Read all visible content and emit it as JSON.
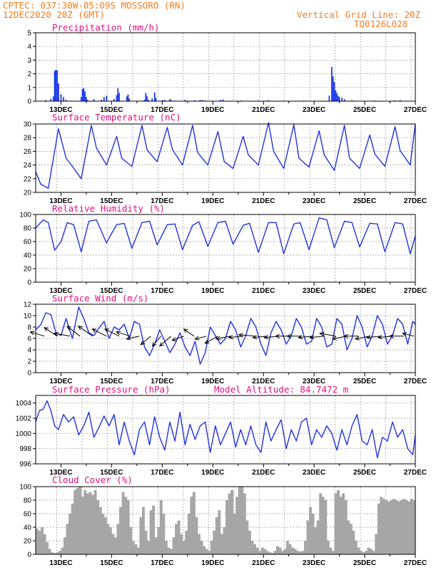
{
  "header": {
    "line1": "CPTEC:   037:30W-05:09S   MOSSORO (RN)",
    "line2": "12DEC2020 20Z (GMT)",
    "vgrid": "Vertical Grid Line: 20Z",
    "code": "TQ0126L028"
  },
  "colors": {
    "line": "#2233dd",
    "bar": "#1f3cf0",
    "cloud": "#a6a6a6",
    "header": "#f07d20",
    "title": "#e0117f"
  },
  "x_tick_labels": [
    "13DEC",
    "15DEC",
    "17DEC",
    "19DEC",
    "21DEC",
    "23DEC",
    "25DEC",
    "27DEC"
  ],
  "chart_data": [
    {
      "id": "precip",
      "type": "bar",
      "title": "Precipitation (mm/h)",
      "ylim": [
        0,
        5
      ],
      "yticks": [
        0,
        1,
        2,
        3,
        4,
        5
      ],
      "x": [
        12.4,
        12.6,
        12.7,
        12.75,
        12.8,
        12.85,
        12.9,
        13.0,
        13.1,
        13.2,
        13.8,
        13.85,
        13.9,
        13.95,
        14.0,
        14.05,
        14.3,
        14.6,
        14.7,
        14.8,
        15.1,
        15.2,
        15.25,
        15.3,
        15.6,
        15.65,
        15.7,
        16.3,
        16.35,
        16.4,
        16.45,
        16.6,
        16.7,
        16.75,
        17.0,
        17.1,
        17.3,
        17.35,
        17.9,
        18.3,
        18.5,
        18.6,
        18.7,
        19.3,
        19.4,
        20.1,
        20.8,
        21.2,
        21.8,
        22.6,
        23.6,
        23.7,
        23.75,
        23.8,
        23.85,
        23.9,
        23.95,
        24.0,
        24.1,
        24.2,
        24.5,
        25.4,
        26.2,
        26.4
      ],
      "values": [
        0.08,
        0.18,
        0.35,
        2.2,
        2.3,
        2.25,
        1.3,
        0.5,
        0.3,
        0.1,
        0.3,
        0.9,
        0.95,
        0.7,
        0.3,
        0.1,
        0.15,
        0.1,
        0.3,
        0.4,
        0.15,
        0.45,
        0.95,
        0.6,
        0.35,
        0.5,
        0.2,
        0.1,
        0.6,
        0.35,
        0.1,
        0.2,
        0.65,
        0.25,
        0.08,
        0.1,
        0.15,
        0.08,
        0.1,
        0.08,
        0.1,
        0.08,
        0.05,
        0.1,
        0.12,
        0.05,
        0.05,
        0.08,
        0.05,
        0.05,
        0.4,
        2.5,
        1.8,
        1.4,
        0.8,
        0.6,
        0.4,
        0.3,
        0.25,
        0.15,
        0.08,
        0.05,
        0.05,
        0.08
      ]
    },
    {
      "id": "temp",
      "type": "line",
      "title": "Surface Temperature (nC)",
      "ylim": [
        20,
        30
      ],
      "yticks": [
        20,
        22,
        24,
        26,
        28,
        30
      ],
      "x": [
        12.0,
        12.2,
        12.5,
        12.9,
        13.2,
        13.45,
        13.8,
        14.2,
        14.4,
        14.8,
        15.2,
        15.4,
        15.8,
        16.2,
        16.4,
        16.8,
        17.2,
        17.4,
        17.8,
        18.2,
        18.4,
        18.8,
        19.2,
        19.45,
        19.8,
        20.2,
        20.4,
        20.8,
        21.2,
        21.4,
        21.8,
        22.2,
        22.4,
        22.8,
        23.2,
        23.4,
        23.8,
        24.2,
        24.4,
        24.8,
        25.2,
        25.4,
        25.8,
        26.2,
        26.4,
        26.8,
        27.0
      ],
      "values": [
        23.0,
        21.2,
        20.6,
        29.3,
        25.0,
        23.8,
        22.0,
        29.8,
        26.5,
        24.0,
        28.2,
        25.0,
        23.8,
        29.8,
        26.2,
        24.5,
        29.5,
        26.3,
        24.0,
        29.8,
        25.8,
        24.0,
        28.9,
        24.5,
        23.5,
        28.2,
        25.5,
        24.0,
        30.2,
        26.0,
        23.5,
        29.9,
        25.0,
        23.7,
        29.0,
        25.5,
        23.2,
        29.8,
        25.0,
        23.5,
        28.4,
        25.6,
        23.8,
        29.6,
        26.1,
        24.0,
        30.0
      ]
    },
    {
      "id": "rh",
      "type": "line",
      "title": "Relative Humidity (%)",
      "ylim": [
        0,
        100
      ],
      "yticks": [
        0,
        20,
        40,
        60,
        80,
        100
      ],
      "x": [
        12.0,
        12.3,
        12.5,
        12.75,
        13.0,
        13.25,
        13.5,
        13.8,
        14.1,
        14.4,
        14.8,
        15.0,
        15.2,
        15.5,
        15.8,
        16.2,
        16.5,
        16.8,
        17.2,
        17.5,
        17.8,
        18.2,
        18.45,
        18.8,
        19.2,
        19.5,
        19.8,
        20.2,
        20.45,
        20.8,
        21.2,
        21.5,
        21.8,
        22.2,
        22.45,
        22.8,
        23.2,
        23.5,
        23.8,
        24.2,
        24.5,
        24.8,
        25.2,
        25.5,
        25.8,
        26.2,
        26.5,
        26.8,
        27.0
      ],
      "values": [
        80.0,
        92.0,
        88.0,
        47.0,
        60.0,
        88.0,
        85.0,
        45.0,
        90.0,
        92.0,
        58.0,
        72.0,
        85.0,
        87.0,
        50.0,
        88.0,
        90.0,
        55.0,
        85.0,
        86.0,
        48.0,
        84.0,
        89.0,
        53.0,
        88.0,
        90.0,
        56.0,
        84.0,
        87.0,
        44.0,
        88.0,
        88.0,
        42.0,
        86.0,
        88.0,
        48.0,
        95.0,
        92.0,
        51.0,
        90.0,
        88.0,
        52.0,
        87.0,
        86.0,
        45.0,
        88.0,
        86.0,
        42.0,
        68.0
      ]
    },
    {
      "id": "wind",
      "type": "line",
      "title": "Surface Wind (m/s)",
      "ylim": [
        0,
        12
      ],
      "yticks": [
        0,
        2,
        4,
        6,
        8,
        10,
        12
      ],
      "x": [
        12.0,
        12.2,
        12.4,
        12.6,
        12.8,
        13.0,
        13.2,
        13.45,
        13.7,
        13.9,
        14.1,
        14.3,
        14.45,
        14.7,
        14.9,
        15.1,
        15.3,
        15.5,
        15.7,
        15.9,
        16.1,
        16.3,
        16.5,
        16.7,
        16.9,
        17.1,
        17.3,
        17.5,
        17.7,
        17.9,
        18.1,
        18.3,
        18.5,
        18.7,
        18.9,
        19.1,
        19.3,
        19.5,
        19.7,
        19.9,
        20.1,
        20.3,
        20.5,
        20.7,
        20.9,
        21.1,
        21.3,
        21.5,
        21.7,
        21.9,
        22.1,
        22.3,
        22.5,
        22.7,
        22.9,
        23.1,
        23.3,
        23.5,
        23.7,
        23.9,
        24.1,
        24.3,
        24.5,
        24.7,
        24.9,
        25.1,
        25.3,
        25.5,
        25.7,
        25.9,
        26.1,
        26.3,
        26.5,
        26.7,
        26.9,
        27.0
      ],
      "values": [
        7.5,
        8.4,
        10.5,
        10.2,
        7.0,
        6.5,
        9.5,
        6.0,
        11.5,
        9.5,
        7.0,
        6.5,
        7.5,
        9.0,
        6.0,
        8.0,
        7.5,
        8.5,
        6.0,
        9.0,
        8.5,
        4.5,
        3.0,
        5.0,
        7.5,
        5.5,
        3.5,
        5.0,
        7.0,
        4.5,
        3.0,
        5.5,
        1.5,
        3.5,
        8.0,
        6.5,
        5.0,
        6.0,
        9.0,
        7.5,
        4.5,
        6.5,
        9.5,
        8.0,
        5.0,
        3.0,
        7.0,
        9.0,
        7.5,
        5.0,
        6.5,
        9.5,
        8.0,
        5.0,
        5.5,
        9.5,
        8.0,
        4.5,
        5.0,
        9.5,
        8.5,
        4.0,
        6.0,
        10.0,
        8.0,
        4.5,
        6.5,
        10.0,
        8.5,
        5.0,
        6.5,
        9.5,
        8.5,
        5.0,
        9.0,
        8.5
      ],
      "vectors": [
        {
          "x": 12.35,
          "dx": -0.5,
          "dy": -0.15
        },
        {
          "x": 12.85,
          "dx": -0.45,
          "dy": -0.3
        },
        {
          "x": 13.35,
          "dx": -0.55,
          "dy": -0.1
        },
        {
          "x": 13.75,
          "dx": -0.45,
          "dy": -0.35
        },
        {
          "x": 14.25,
          "dx": -0.5,
          "dy": -0.35
        },
        {
          "x": 14.8,
          "dx": -0.5,
          "dy": -0.25
        },
        {
          "x": 15.3,
          "dx": -0.5,
          "dy": -0.25
        },
        {
          "x": 15.75,
          "dx": -0.5,
          "dy": -0.15
        },
        {
          "x": 16.1,
          "dx": -0.45,
          "dy": 0.1
        },
        {
          "x": 16.55,
          "dx": -0.35,
          "dy": 0.3
        },
        {
          "x": 16.95,
          "dx": -0.3,
          "dy": 0.35
        },
        {
          "x": 17.35,
          "dx": -0.4,
          "dy": 0.35
        },
        {
          "x": 17.85,
          "dx": -0.4,
          "dy": 0.15
        },
        {
          "x": 18.25,
          "dx": -0.35,
          "dy": -0.25
        },
        {
          "x": 18.75,
          "dx": -0.4,
          "dy": 0.1
        },
        {
          "x": 19.2,
          "dx": -0.45,
          "dy": 0.25
        },
        {
          "x": 19.7,
          "dx": -0.5,
          "dy": 0.1
        },
        {
          "x": 20.2,
          "dx": -0.5,
          "dy": 0.05
        },
        {
          "x": 20.65,
          "dx": -0.55,
          "dy": -0.05
        },
        {
          "x": 21.15,
          "dx": -0.5,
          "dy": 0.05
        },
        {
          "x": 21.6,
          "dx": -0.5,
          "dy": 0.05
        },
        {
          "x": 22.05,
          "dx": -0.5,
          "dy": 0.0
        },
        {
          "x": 22.5,
          "dx": -0.5,
          "dy": 0.0
        },
        {
          "x": 22.95,
          "dx": -0.5,
          "dy": 0.05
        },
        {
          "x": 23.4,
          "dx": -0.5,
          "dy": 0.05
        },
        {
          "x": 23.85,
          "dx": -0.55,
          "dy": -0.1
        },
        {
          "x": 24.3,
          "dx": -0.5,
          "dy": 0.1
        },
        {
          "x": 24.75,
          "dx": -0.5,
          "dy": 0.0
        },
        {
          "x": 25.2,
          "dx": -0.5,
          "dy": 0.1
        },
        {
          "x": 25.65,
          "dx": -0.5,
          "dy": 0.05
        },
        {
          "x": 26.1,
          "dx": -0.5,
          "dy": 0.05
        },
        {
          "x": 26.55,
          "dx": -0.5,
          "dy": 0.0
        },
        {
          "x": 26.95,
          "dx": -0.4,
          "dy": -0.1
        }
      ]
    },
    {
      "id": "pres",
      "type": "line",
      "title": "Surface Pressure (hPa)",
      "annotation": "Model Altitude: 84.7472 m",
      "ylim": [
        996,
        1005
      ],
      "yticks": [
        996,
        998,
        1000,
        1002,
        1004
      ],
      "x": [
        12.0,
        12.15,
        12.3,
        12.45,
        12.6,
        12.75,
        12.9,
        13.1,
        13.3,
        13.5,
        13.7,
        13.9,
        14.1,
        14.3,
        14.5,
        14.7,
        14.9,
        15.1,
        15.3,
        15.5,
        15.7,
        15.9,
        16.1,
        16.3,
        16.5,
        16.7,
        16.9,
        17.1,
        17.3,
        17.5,
        17.7,
        17.9,
        18.1,
        18.3,
        18.5,
        18.7,
        18.9,
        19.1,
        19.3,
        19.5,
        19.7,
        19.9,
        20.1,
        20.3,
        20.5,
        20.7,
        20.9,
        21.1,
        21.3,
        21.5,
        21.7,
        21.9,
        22.1,
        22.3,
        22.5,
        22.7,
        22.9,
        23.1,
        23.3,
        23.5,
        23.7,
        23.9,
        24.1,
        24.3,
        24.5,
        24.7,
        24.9,
        25.1,
        25.3,
        25.5,
        25.7,
        25.9,
        26.1,
        26.3,
        26.5,
        26.7,
        26.9,
        27.0
      ],
      "values": [
        1001.5,
        1003.0,
        1003.2,
        1004.3,
        1003.0,
        1001.0,
        1000.5,
        1002.5,
        1001.5,
        1002.2,
        999.8,
        1001.0,
        1002.8,
        999.5,
        1000.8,
        1002.3,
        1001.0,
        1002.5,
        998.5,
        1001.5,
        999.0,
        997.2,
        1000.5,
        1001.5,
        998.5,
        1002.2,
        999.5,
        997.8,
        1001.5,
        999.0,
        1002.8,
        998.5,
        1001.2,
        999.2,
        1001.0,
        1001.5,
        997.5,
        1001.0,
        998.5,
        1000.0,
        1001.5,
        998.2,
        1000.5,
        998.5,
        1001.0,
        998.5,
        997.5,
        1001.5,
        999.0,
        1000.5,
        1001.8,
        998.0,
        1000.5,
        999.0,
        1001.5,
        1002.0,
        998.5,
        1000.5,
        999.5,
        1001.0,
        1000.0,
        997.8,
        1000.5,
        998.5,
        1001.0,
        1002.5,
        999.0,
        998.5,
        1000.5,
        996.8,
        999.5,
        999.0,
        1001.5,
        999.5,
        1000.5,
        998.0,
        997.2,
        999.8
      ]
    },
    {
      "id": "cloud",
      "type": "bar",
      "title": "Cloud Cover (%)",
      "ylim": [
        0,
        100
      ],
      "yticks": [
        0,
        20,
        40,
        60,
        80,
        100
      ],
      "x": [
        12.0,
        12.1,
        12.2,
        12.3,
        12.4,
        12.5,
        12.6,
        12.7,
        12.8,
        12.9,
        13.0,
        13.1,
        13.2,
        13.3,
        13.4,
        13.5,
        13.6,
        13.7,
        13.8,
        13.9,
        14.0,
        14.1,
        14.2,
        14.3,
        14.4,
        14.5,
        14.6,
        14.7,
        14.8,
        14.9,
        15.0,
        15.1,
        15.2,
        15.3,
        15.4,
        15.5,
        15.6,
        15.7,
        15.8,
        15.9,
        16.0,
        16.1,
        16.2,
        16.3,
        16.4,
        16.5,
        16.6,
        16.7,
        16.8,
        16.9,
        17.0,
        17.1,
        17.2,
        17.3,
        17.4,
        17.5,
        17.6,
        17.7,
        17.8,
        17.9,
        18.0,
        18.1,
        18.2,
        18.3,
        18.4,
        18.5,
        18.6,
        18.7,
        18.8,
        18.9,
        19.0,
        19.1,
        19.2,
        19.3,
        19.4,
        19.5,
        19.6,
        19.7,
        19.8,
        19.9,
        20.0,
        20.1,
        20.2,
        20.3,
        20.4,
        20.5,
        20.6,
        20.7,
        20.8,
        20.9,
        21.0,
        21.1,
        21.2,
        21.3,
        21.4,
        21.5,
        21.6,
        21.7,
        21.8,
        21.9,
        22.0,
        22.1,
        22.2,
        22.3,
        22.4,
        22.5,
        22.6,
        22.7,
        22.8,
        22.9,
        23.0,
        23.1,
        23.2,
        23.3,
        23.4,
        23.5,
        23.6,
        23.7,
        23.8,
        23.9,
        24.0,
        24.1,
        24.2,
        24.3,
        24.4,
        24.5,
        24.6,
        24.7,
        24.8,
        24.9,
        25.0,
        25.1,
        25.2,
        25.3,
        25.4,
        25.5,
        25.6,
        25.7,
        25.8,
        25.9,
        26.0,
        26.1,
        26.2,
        26.3,
        26.4,
        26.5,
        26.6,
        26.7,
        26.8,
        26.9
      ],
      "values": [
        38,
        35,
        40,
        30,
        18,
        8,
        3,
        2,
        3,
        5,
        10,
        25,
        45,
        60,
        75,
        95,
        98,
        100,
        85,
        95,
        90,
        92,
        88,
        95,
        80,
        70,
        60,
        55,
        45,
        40,
        30,
        25,
        45,
        70,
        92,
        85,
        80,
        40,
        20,
        15,
        10,
        55,
        70,
        35,
        20,
        65,
        72,
        25,
        40,
        80,
        60,
        20,
        10,
        8,
        25,
        45,
        50,
        30,
        20,
        35,
        60,
        85,
        92,
        55,
        30,
        20,
        12,
        8,
        5,
        20,
        35,
        55,
        65,
        30,
        40,
        80,
        90,
        95,
        60,
        85,
        100,
        100,
        90,
        50,
        35,
        20,
        15,
        10,
        5,
        10,
        8,
        5,
        3,
        2,
        5,
        12,
        10,
        5,
        8,
        20,
        15,
        10,
        8,
        5,
        4,
        5,
        20,
        50,
        70,
        60,
        40,
        50,
        90,
        85,
        80,
        20,
        10,
        5,
        90,
        95,
        85,
        90,
        80,
        50,
        45,
        35,
        20,
        10,
        5,
        3,
        5,
        10,
        8,
        5,
        30,
        75,
        85,
        82,
        80,
        78,
        80,
        82,
        80,
        78,
        80,
        82,
        80,
        78,
        82,
        80
      ]
    }
  ]
}
